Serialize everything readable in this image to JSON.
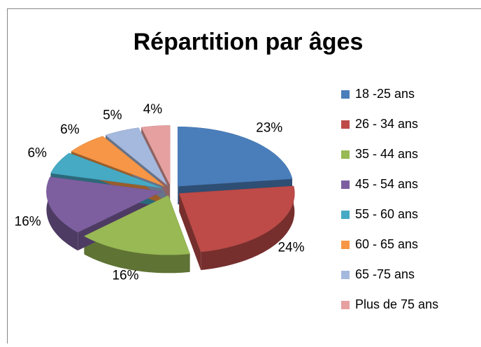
{
  "chart_data": {
    "type": "pie",
    "title": "Répartition par âges",
    "categories": [
      "18 -25 ans",
      "26 - 34 ans",
      "35 - 44 ans",
      "45 - 54 ans",
      "55 - 60 ans",
      "60 - 65 ans",
      "65 -75 ans",
      "Plus de 75 ans"
    ],
    "values": [
      23,
      24,
      16,
      16,
      6,
      6,
      5,
      4
    ],
    "value_labels": [
      "23%",
      "24%",
      "16%",
      "16%",
      "6%",
      "6%",
      "5%",
      "4%"
    ],
    "colors": [
      "#4a7ebb",
      "#be4b48",
      "#98b954",
      "#7d5fa0",
      "#46aac5",
      "#f79646",
      "#a5b9de",
      "#e6a0a0"
    ],
    "legend": "right"
  }
}
